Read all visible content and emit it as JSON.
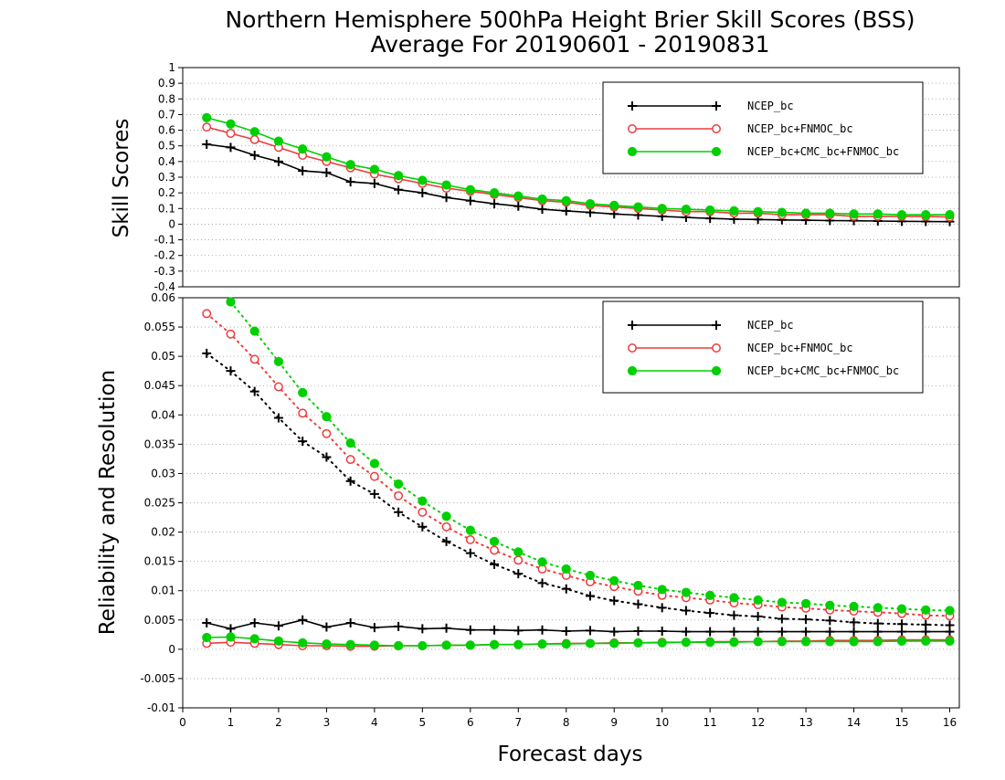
{
  "title_line1": "Northern Hemisphere 500hPa Height Brier Skill Scores (BSS)",
  "title_line2": "Average For 20190601 - 20190831",
  "colors": {
    "NCEP_bc": "#000000",
    "NCEP_bc+FNMOC_bc": "#ee3b3b",
    "NCEP_bc+CMC_bc+FNMOC_bc": "#00d000"
  },
  "chart_data": [
    {
      "type": "line",
      "panel": "top",
      "ylabel": "Skill Scores",
      "xlim": [
        0,
        16.2
      ],
      "ylim": [
        -0.4,
        1
      ],
      "yticks": [
        1,
        0.9,
        0.8,
        0.7,
        0.6,
        0.5,
        0.4,
        0.3,
        0.2,
        0.1,
        0,
        -0.1,
        -0.2,
        -0.3,
        -0.4
      ],
      "grid": true,
      "legend_position": "top-right",
      "x": [
        0.5,
        1,
        1.5,
        2,
        2.5,
        3,
        3.5,
        4,
        4.5,
        5,
        5.5,
        6,
        6.5,
        7,
        7.5,
        8,
        8.5,
        9,
        9.5,
        10,
        10.5,
        11,
        11.5,
        12,
        12.5,
        13,
        13.5,
        14,
        14.5,
        15,
        15.5,
        16
      ],
      "series": [
        {
          "name": "NCEP_bc",
          "marker": "plus",
          "line": "solid",
          "values": [
            0.51,
            0.49,
            0.44,
            0.4,
            0.34,
            0.33,
            0.27,
            0.26,
            0.22,
            0.2,
            0.17,
            0.15,
            0.13,
            0.115,
            0.095,
            0.085,
            0.075,
            0.065,
            0.058,
            0.05,
            0.043,
            0.037,
            0.032,
            0.03,
            0.027,
            0.025,
            0.023,
            0.022,
            0.02,
            0.018,
            0.017,
            0.016
          ]
        },
        {
          "name": "NCEP_bc+FNMOC_bc",
          "marker": "open-circle",
          "line": "solid",
          "values": [
            0.62,
            0.58,
            0.54,
            0.49,
            0.44,
            0.4,
            0.36,
            0.32,
            0.29,
            0.26,
            0.23,
            0.21,
            0.19,
            0.17,
            0.15,
            0.14,
            0.12,
            0.11,
            0.1,
            0.09,
            0.08,
            0.08,
            0.07,
            0.07,
            0.06,
            0.06,
            0.06,
            0.05,
            0.05,
            0.05,
            0.05,
            0.045
          ]
        },
        {
          "name": "NCEP_bc+CMC_bc+FNMOC_bc",
          "marker": "filled-circle",
          "line": "solid",
          "values": [
            0.68,
            0.64,
            0.59,
            0.53,
            0.48,
            0.43,
            0.38,
            0.35,
            0.31,
            0.28,
            0.25,
            0.22,
            0.2,
            0.18,
            0.16,
            0.15,
            0.13,
            0.12,
            0.11,
            0.1,
            0.095,
            0.09,
            0.085,
            0.08,
            0.075,
            0.07,
            0.07,
            0.065,
            0.065,
            0.06,
            0.06,
            0.06
          ]
        }
      ]
    },
    {
      "type": "line",
      "panel": "bottom",
      "ylabel": "Reliability and Resolution",
      "xlabel": "Forecast days",
      "xlim": [
        0,
        16.2
      ],
      "ylim": [
        -0.01,
        0.06
      ],
      "xticks": [
        0,
        1,
        2,
        3,
        4,
        5,
        6,
        7,
        8,
        9,
        10,
        11,
        12,
        13,
        14,
        15,
        16
      ],
      "yticks": [
        0.06,
        0.055,
        0.05,
        0.045,
        0.04,
        0.035,
        0.03,
        0.025,
        0.02,
        0.015,
        0.01,
        0.005,
        0,
        -0.005,
        -0.01
      ],
      "grid": true,
      "legend_position": "top-right",
      "x": [
        0.5,
        1,
        1.5,
        2,
        2.5,
        3,
        3.5,
        4,
        4.5,
        5,
        5.5,
        6,
        6.5,
        7,
        7.5,
        8,
        8.5,
        9,
        9.5,
        10,
        10.5,
        11,
        11.5,
        12,
        12.5,
        13,
        13.5,
        14,
        14.5,
        15,
        15.5,
        16
      ],
      "series": [
        {
          "name": "NCEP_bc",
          "component": "resolution",
          "marker": "plus",
          "line": "dotted",
          "values": [
            0.0505,
            0.0475,
            0.044,
            0.0395,
            0.0355,
            0.0328,
            0.0287,
            0.0265,
            0.0234,
            0.0209,
            0.0184,
            0.0164,
            0.0145,
            0.0129,
            0.0113,
            0.0103,
            0.0091,
            0.0083,
            0.0077,
            0.0071,
            0.0066,
            0.0062,
            0.0058,
            0.0056,
            0.0052,
            0.0051,
            0.0049,
            0.0046,
            0.0044,
            0.0043,
            0.0042,
            0.0041
          ]
        },
        {
          "name": "NCEP_bc+FNMOC_bc",
          "component": "resolution",
          "marker": "open-circle",
          "line": "dotted",
          "values": [
            0.0573,
            0.0538,
            0.0495,
            0.0448,
            0.0403,
            0.0368,
            0.0324,
            0.0295,
            0.0262,
            0.0234,
            0.0209,
            0.0187,
            0.0169,
            0.0152,
            0.0137,
            0.0126,
            0.0115,
            0.0107,
            0.0099,
            0.0092,
            0.0088,
            0.0084,
            0.0079,
            0.0076,
            0.0072,
            0.007,
            0.0067,
            0.0065,
            0.0063,
            0.0061,
            0.0058,
            0.0057
          ]
        },
        {
          "name": "NCEP_bc+CMC_bc+FNMOC_bc",
          "component": "resolution",
          "marker": "filled-circle",
          "line": "dotted",
          "values": [
            null,
            0.0593,
            0.0543,
            0.0491,
            0.0438,
            0.0397,
            0.0352,
            0.0317,
            0.0282,
            0.0253,
            0.0227,
            0.0203,
            0.0184,
            0.0166,
            0.0149,
            0.0137,
            0.0126,
            0.0117,
            0.0109,
            0.0102,
            0.0097,
            0.0092,
            0.0088,
            0.0084,
            0.008,
            0.0078,
            0.0075,
            0.0073,
            0.0071,
            0.0069,
            0.0067,
            0.0066
          ]
        },
        {
          "name": "NCEP_bc",
          "component": "reliability",
          "marker": "plus",
          "line": "solid",
          "values": [
            0.0045,
            0.0035,
            0.0045,
            0.004,
            0.005,
            0.0038,
            0.0045,
            0.0037,
            0.0039,
            0.0035,
            0.0036,
            0.0033,
            0.0033,
            0.0032,
            0.0033,
            0.0031,
            0.0032,
            0.003,
            0.0031,
            0.0031,
            0.003,
            0.003,
            0.003,
            0.003,
            0.003,
            0.003,
            0.003,
            0.003,
            0.003,
            0.003,
            0.003,
            0.003
          ]
        },
        {
          "name": "NCEP_bc+FNMOC_bc",
          "component": "reliability",
          "marker": "open-circle",
          "line": "solid",
          "values": [
            0.001,
            0.0012,
            0.001,
            0.0008,
            0.0006,
            0.0006,
            0.0005,
            0.0005,
            0.0006,
            0.0006,
            0.0007,
            0.0007,
            0.0008,
            0.0008,
            0.0009,
            0.001,
            0.001,
            0.0011,
            0.0011,
            0.0012,
            0.0012,
            0.0013,
            0.0013,
            0.0013,
            0.0014,
            0.0014,
            0.0015,
            0.0015,
            0.0015,
            0.0016,
            0.0016,
            0.0016
          ]
        },
        {
          "name": "NCEP_bc+CMC_bc+FNMOC_bc",
          "component": "reliability",
          "marker": "filled-circle",
          "line": "solid",
          "values": [
            0.002,
            0.0021,
            0.0018,
            0.0014,
            0.0011,
            0.0009,
            0.0008,
            0.0007,
            0.0006,
            0.0006,
            0.0007,
            0.0007,
            0.0008,
            0.0008,
            0.0009,
            0.0009,
            0.001,
            0.001,
            0.0011,
            0.0011,
            0.0012,
            0.0012,
            0.0012,
            0.0013,
            0.0013,
            0.0013,
            0.0013,
            0.0013,
            0.0013,
            0.0014,
            0.0014,
            0.0014
          ]
        }
      ]
    }
  ]
}
